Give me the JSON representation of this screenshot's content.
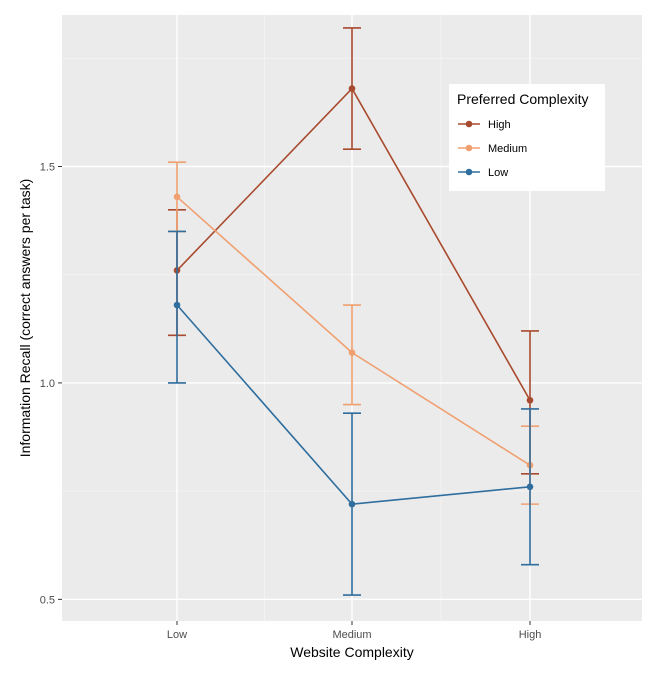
{
  "chart_data": {
    "type": "line",
    "xlabel": "Website Complexity",
    "ylabel": "Information Recall (correct answers per task)",
    "categories": [
      "Low",
      "Medium",
      "High"
    ],
    "y_ticks": [
      "0.5",
      "1.0",
      "1.5"
    ],
    "ylim": [
      0.45,
      1.85
    ],
    "grid": true,
    "legend": {
      "title": "Preferred Complexity",
      "position": "top-right"
    },
    "series": [
      {
        "name": "High",
        "color": "#a84a2e",
        "values": [
          1.26,
          1.68,
          0.96
        ],
        "lower": [
          1.11,
          1.54,
          0.79
        ],
        "upper": [
          1.4,
          1.82,
          1.12
        ]
      },
      {
        "name": "Medium",
        "color": "#f0a070",
        "values": [
          1.43,
          1.07,
          0.81
        ],
        "lower": [
          1.35,
          0.95,
          0.72
        ],
        "upper": [
          1.51,
          1.18,
          0.9
        ]
      },
      {
        "name": "Low",
        "color": "#2f6e9e",
        "values": [
          1.18,
          0.72,
          0.76
        ],
        "lower": [
          1.0,
          0.51,
          0.58
        ],
        "upper": [
          1.35,
          0.93,
          0.94
        ]
      }
    ]
  }
}
